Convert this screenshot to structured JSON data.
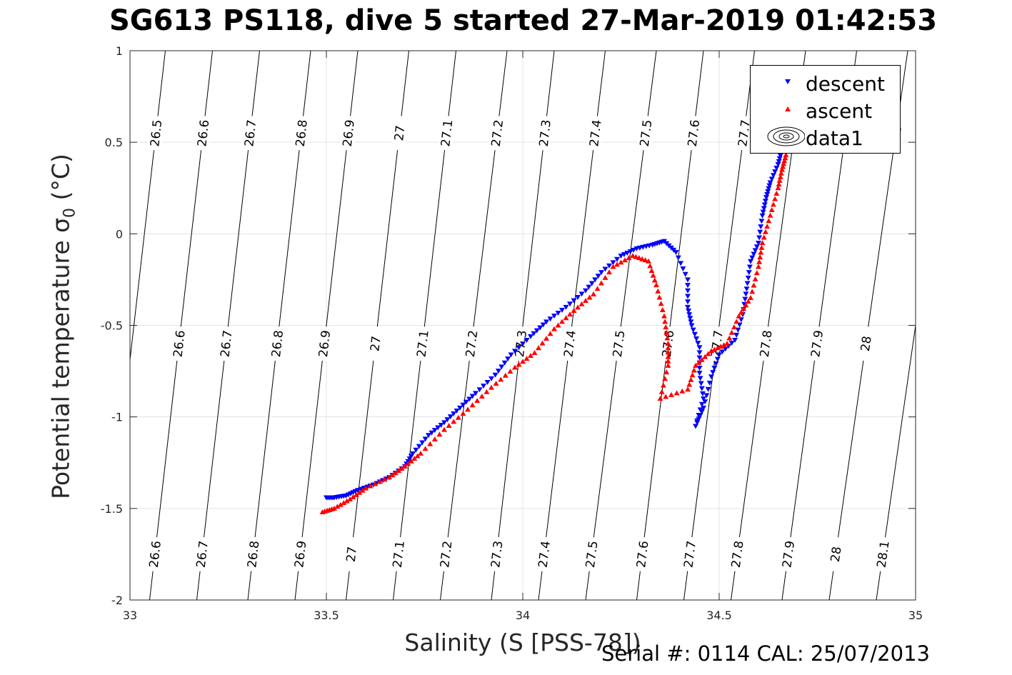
{
  "title": "SG613 PS118, dive 5 started 27-Mar-2019 01:42:53",
  "footer": "Serial #: 0114  CAL: 25/07/2013",
  "chart_data": {
    "type": "scatter",
    "title": "SG613 PS118, dive 5 started 27-Mar-2019 01:42:53",
    "xlabel": "Salinity (S [PSS-78])",
    "ylabel_prefix": "Potential temperature σ",
    "ylabel_sub": "0",
    "ylabel_suffix": " (°C)",
    "xlim": [
      33,
      35
    ],
    "ylim": [
      -2,
      1
    ],
    "xticks": [
      33,
      33.5,
      34,
      34.5,
      35
    ],
    "yticks": [
      -2,
      -1.5,
      -1,
      -0.5,
      0,
      0.5,
      1
    ],
    "xtick_labels": [
      "33",
      "33.5",
      "34",
      "34.5",
      "35"
    ],
    "ytick_labels": [
      "-2",
      "-1.5",
      "-1",
      "-0.5",
      "0",
      "0.5",
      "1"
    ],
    "grid": true,
    "legend_position": "top-right",
    "legend": [
      "descent",
      "ascent",
      "data1"
    ],
    "isopycnals": {
      "levels": [
        "26.5",
        "26.6",
        "26.7",
        "26.8",
        "26.9",
        "27",
        "27.1",
        "27.2",
        "27.3",
        "27.4",
        "27.5",
        "27.6",
        "27.7",
        "27.8",
        "27.9",
        "28",
        "28.1"
      ],
      "salinity_at_theta_minus2": [
        32.93,
        33.05,
        33.17,
        33.3,
        33.42,
        33.55,
        33.67,
        33.79,
        33.92,
        34.04,
        34.16,
        34.29,
        34.41,
        34.53,
        34.66,
        34.78,
        34.9
      ],
      "salinity_at_theta_plus1": [
        33.09,
        33.21,
        33.33,
        33.46,
        33.58,
        33.71,
        33.83,
        33.96,
        34.08,
        34.21,
        34.34,
        34.46,
        34.59,
        34.72,
        34.85,
        34.98,
        35.1
      ],
      "label_rows_theta": [
        -1.75,
        -0.6,
        0.55
      ]
    },
    "series": [
      {
        "name": "descent",
        "marker": "triangle-down",
        "color": "#0000ff",
        "points": [
          [
            33.5,
            -1.44
          ],
          [
            33.52,
            -1.44
          ],
          [
            33.55,
            -1.43
          ],
          [
            33.58,
            -1.4
          ],
          [
            33.62,
            -1.37
          ],
          [
            33.66,
            -1.33
          ],
          [
            33.7,
            -1.27
          ],
          [
            33.72,
            -1.2
          ],
          [
            33.76,
            -1.1
          ],
          [
            33.8,
            -1.03
          ],
          [
            33.84,
            -0.95
          ],
          [
            33.88,
            -0.87
          ],
          [
            33.93,
            -0.77
          ],
          [
            33.97,
            -0.66
          ],
          [
            34.02,
            -0.56
          ],
          [
            34.06,
            -0.48
          ],
          [
            34.11,
            -0.4
          ],
          [
            34.16,
            -0.31
          ],
          [
            34.2,
            -0.21
          ],
          [
            34.25,
            -0.12
          ],
          [
            34.29,
            -0.08
          ],
          [
            34.33,
            -0.06
          ],
          [
            34.36,
            -0.04
          ],
          [
            34.39,
            -0.1
          ],
          [
            34.42,
            -0.25
          ],
          [
            34.42,
            -0.4
          ],
          [
            34.43,
            -0.5
          ],
          [
            34.45,
            -0.62
          ],
          [
            34.45,
            -0.76
          ],
          [
            34.46,
            -0.9
          ],
          [
            34.44,
            -1.05
          ],
          [
            34.46,
            -0.95
          ],
          [
            34.48,
            -0.78
          ],
          [
            34.5,
            -0.66
          ],
          [
            34.54,
            -0.58
          ],
          [
            34.56,
            -0.44
          ],
          [
            34.57,
            -0.3
          ],
          [
            34.58,
            -0.15
          ],
          [
            34.6,
            -0.05
          ],
          [
            34.61,
            0.1
          ],
          [
            34.62,
            0.2
          ],
          [
            34.63,
            0.28
          ],
          [
            34.65,
            0.38
          ],
          [
            34.66,
            0.46
          ]
        ]
      },
      {
        "name": "ascent",
        "marker": "triangle-up",
        "color": "#ff0000",
        "points": [
          [
            33.49,
            -1.52
          ],
          [
            33.52,
            -1.5
          ],
          [
            33.56,
            -1.45
          ],
          [
            33.6,
            -1.39
          ],
          [
            33.66,
            -1.33
          ],
          [
            33.7,
            -1.27
          ],
          [
            33.74,
            -1.2
          ],
          [
            33.8,
            -1.07
          ],
          [
            33.86,
            -0.96
          ],
          [
            33.92,
            -0.84
          ],
          [
            33.98,
            -0.73
          ],
          [
            34.03,
            -0.65
          ],
          [
            34.08,
            -0.52
          ],
          [
            34.13,
            -0.42
          ],
          [
            34.18,
            -0.33
          ],
          [
            34.23,
            -0.18
          ],
          [
            34.28,
            -0.12
          ],
          [
            34.32,
            -0.15
          ],
          [
            34.34,
            -0.28
          ],
          [
            34.36,
            -0.45
          ],
          [
            34.37,
            -0.6
          ],
          [
            34.37,
            -0.72
          ],
          [
            34.35,
            -0.9
          ],
          [
            34.42,
            -0.85
          ],
          [
            34.44,
            -0.72
          ],
          [
            34.48,
            -0.64
          ],
          [
            34.52,
            -0.6
          ],
          [
            34.55,
            -0.45
          ],
          [
            34.58,
            -0.35
          ],
          [
            34.6,
            -0.18
          ],
          [
            34.61,
            -0.05
          ],
          [
            34.63,
            0.1
          ],
          [
            34.65,
            0.25
          ],
          [
            34.66,
            0.35
          ],
          [
            34.67,
            0.43
          ]
        ]
      }
    ]
  }
}
